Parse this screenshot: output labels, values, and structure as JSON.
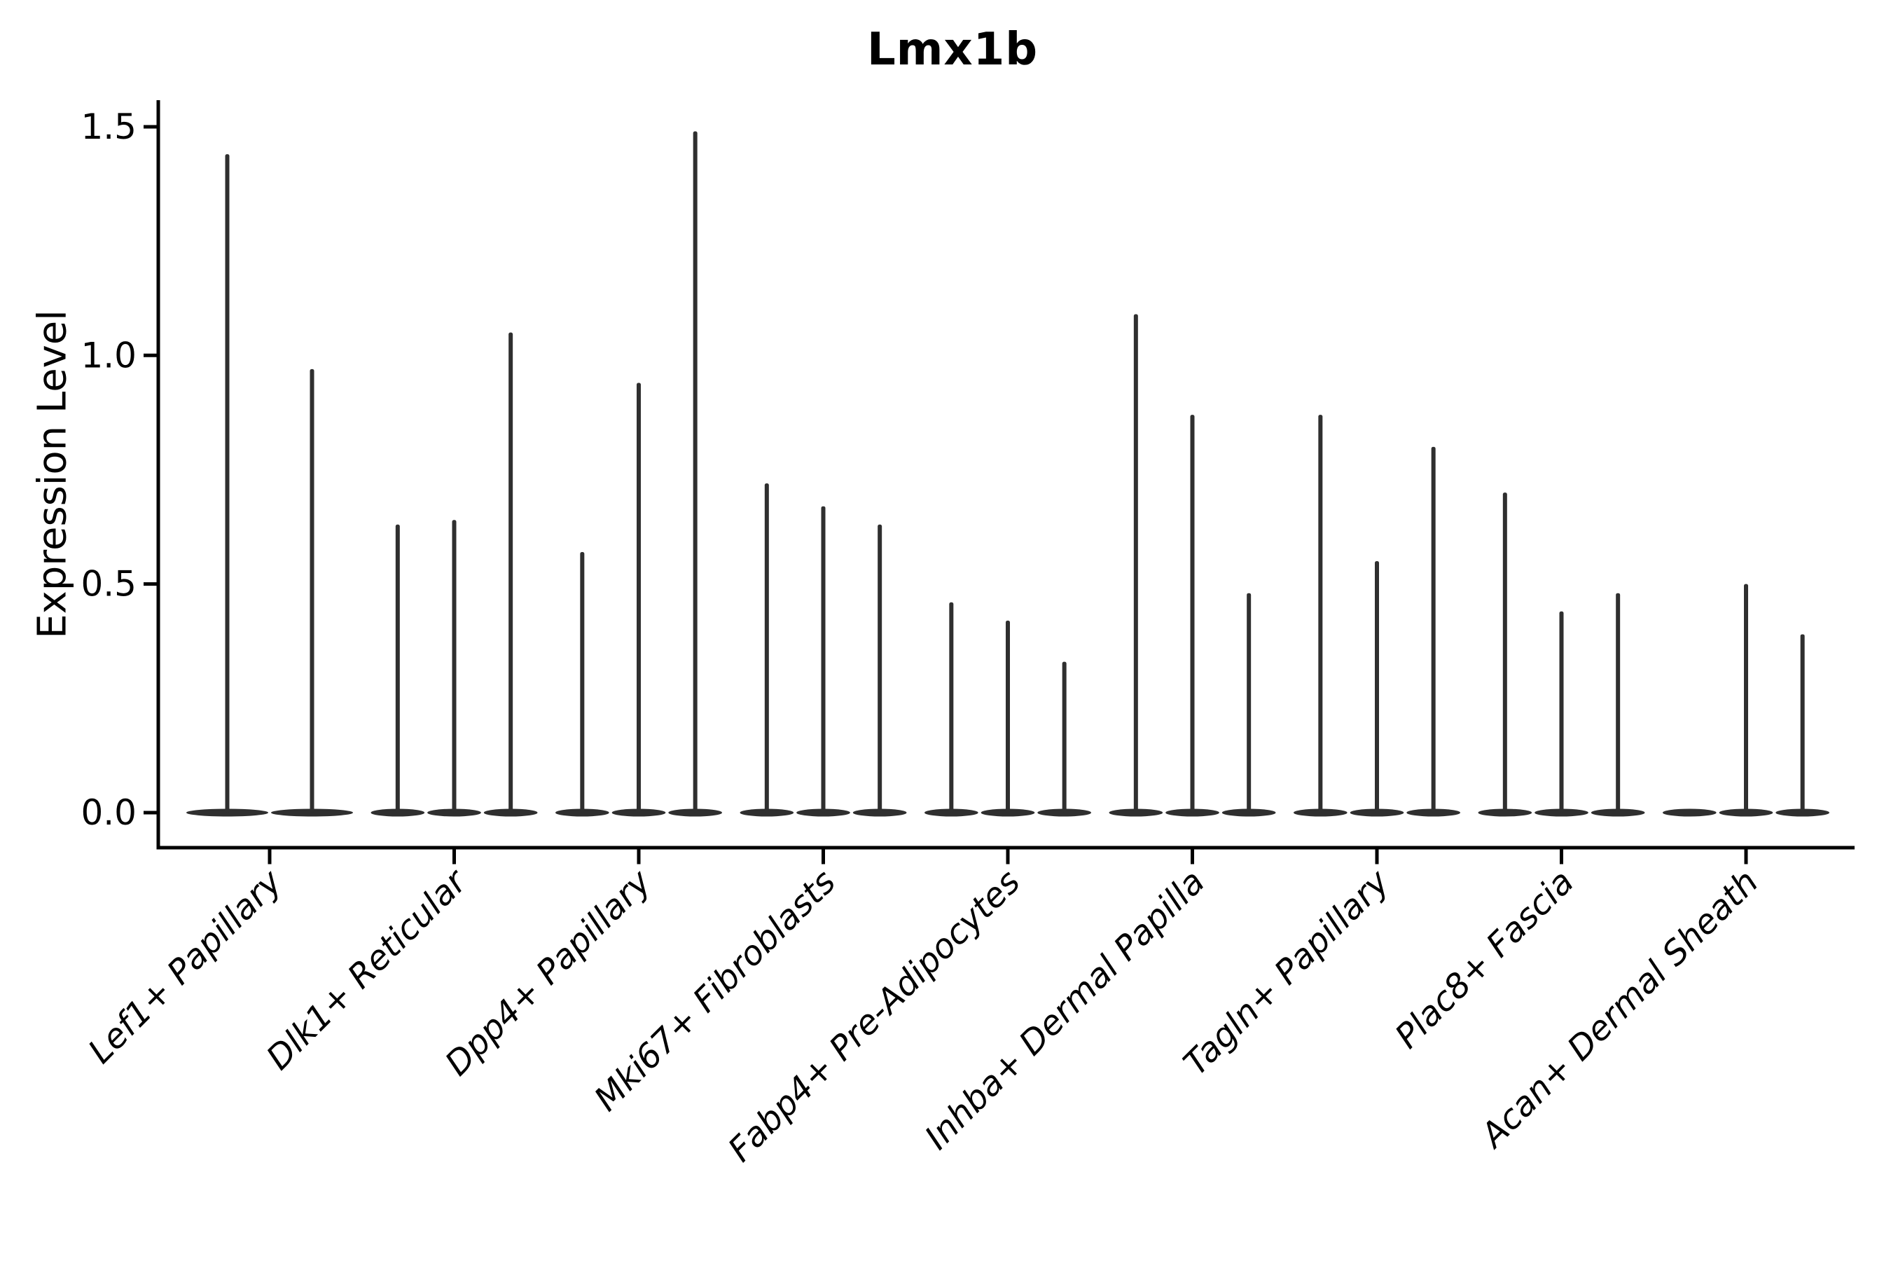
{
  "title": "Lmx1b",
  "axes": {
    "ylabel": "Expression Level",
    "ytick_labels": [
      "0.0",
      "0.5",
      "1.0",
      "1.5"
    ]
  },
  "chart_data": {
    "type": "violin",
    "title": "Lmx1b",
    "xlabel": "",
    "ylabel": "Expression Level",
    "ylim": [
      0,
      1.56
    ],
    "yticks": [
      0,
      0.5,
      1.0,
      1.5
    ],
    "grid": false,
    "legend": "none",
    "style": "needle-thin violins: nearly all density at 0 with a thin spike up to the max expression value",
    "categories": [
      "Lef1+ Papillary",
      "Dlk1+ Reticular",
      "Dpp4+ Papillary",
      "Mki67+ Fibroblasts",
      "Fabp4+ Pre-Adipocytes",
      "Inhba+ Dermal Papilla",
      "Tagln+ Papillary",
      "Plac8+ Fascia",
      "Acan+ Dermal Sheath"
    ],
    "groups": [
      {
        "category": "Lef1+ Papillary",
        "violin_maxima": [
          1.44,
          0.97
        ]
      },
      {
        "category": "Dlk1+ Reticular",
        "violin_maxima": [
          0.63,
          0.64,
          1.05
        ]
      },
      {
        "category": "Dpp4+ Papillary",
        "violin_maxima": [
          0.57,
          0.94,
          1.49
        ]
      },
      {
        "category": "Mki67+ Fibroblasts",
        "violin_maxima": [
          0.72,
          0.67,
          0.63
        ]
      },
      {
        "category": "Fabp4+ Pre-Adipocytes",
        "violin_maxima": [
          0.46,
          0.42,
          0.33
        ]
      },
      {
        "category": "Inhba+ Dermal Papilla",
        "violin_maxima": [
          1.09,
          0.87,
          0.48
        ]
      },
      {
        "category": "Tagln+ Papillary",
        "violin_maxima": [
          0.87,
          0.55,
          0.8
        ]
      },
      {
        "category": "Plac8+ Fascia",
        "violin_maxima": [
          0.7,
          0.44,
          0.48
        ]
      },
      {
        "category": "Acan+ Dermal Sheath",
        "violin_maxima": [
          0.0,
          0.5,
          0.39
        ]
      }
    ],
    "colors": {
      "violin_fill": "#2f2f2f",
      "axis": "#000000",
      "text": "#000000",
      "background": "#ffffff"
    }
  }
}
